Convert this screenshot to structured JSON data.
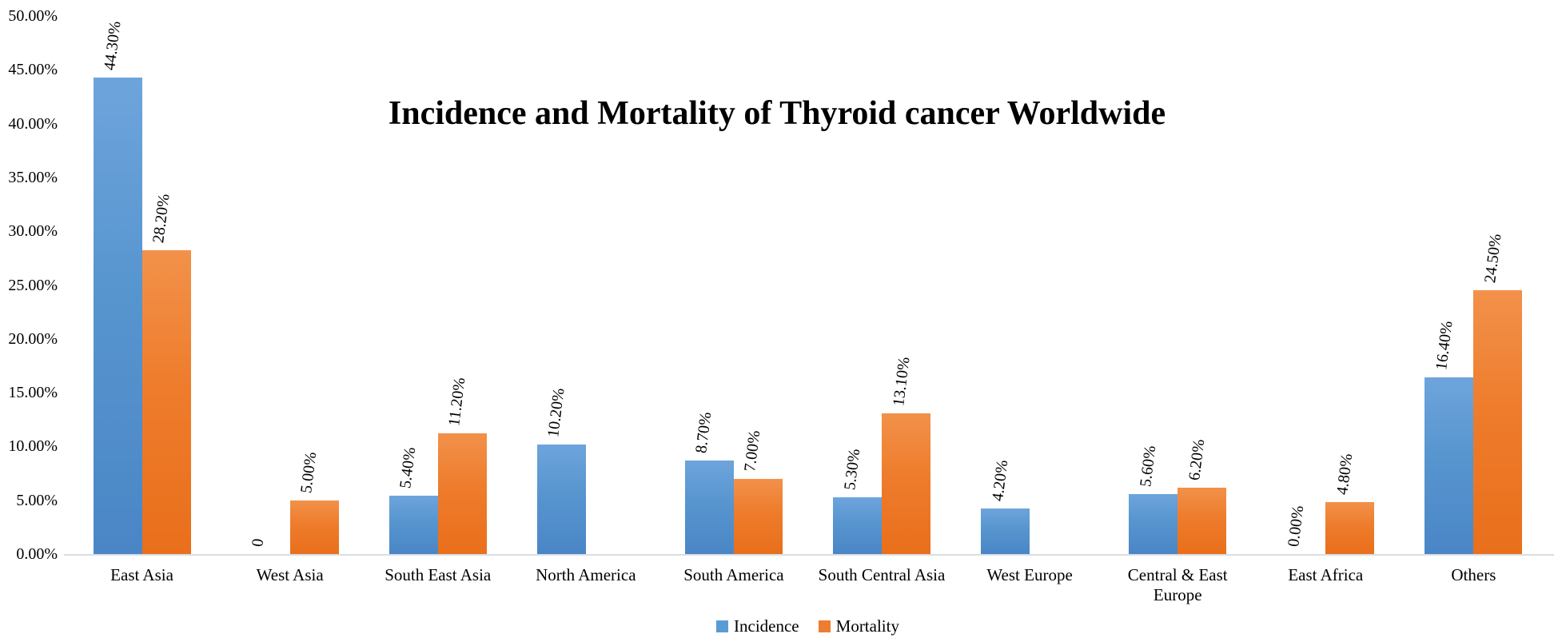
{
  "title": "Incidence and Mortality of Thyroid cancer Worldwide",
  "y_axis": {
    "ticks": [
      "50.00%",
      "45.00%",
      "40.00%",
      "35.00%",
      "30.00%",
      "25.00%",
      "20.00%",
      "15.00%",
      "10.00%",
      "5.00%",
      "0.00%"
    ]
  },
  "legend": [
    {
      "name": "Incidence",
      "color": "#5b9bd5"
    },
    {
      "name": "Mortality",
      "color": "#ed7d31"
    }
  ],
  "chart_data": {
    "type": "bar",
    "title": "Incidence and Mortality of Thyroid cancer Worldwide",
    "categories": [
      "East Asia",
      "West Asia",
      "South East Asia",
      "North America",
      "South America",
      "South Central Asia",
      "West Europe",
      "Central & East Europe",
      "East Africa",
      "Others"
    ],
    "series": [
      {
        "name": "Incidence",
        "color": "#5b9bd5",
        "values": [
          44.3,
          0,
          5.4,
          10.2,
          8.7,
          5.3,
          4.2,
          5.6,
          0,
          16.4
        ],
        "labels": [
          "44.30%",
          "0",
          "5.40%",
          "10.20%",
          "8.70%",
          "5.30%",
          "4.20%",
          "5.60%",
          "0.00%",
          "16.40%"
        ]
      },
      {
        "name": "Mortality",
        "color": "#ed7d31",
        "values": [
          28.2,
          5.0,
          11.2,
          null,
          7.0,
          13.1,
          null,
          6.2,
          4.8,
          24.5
        ],
        "labels": [
          "28.20%",
          "5.00%",
          "11.20%",
          null,
          "7.00%",
          "13.10%",
          null,
          "6.20%",
          "4.80%",
          "24.50%"
        ]
      }
    ],
    "ylabel": "",
    "xlabel": "",
    "ylim": [
      0,
      50
    ],
    "y_tick_step": 5,
    "grid": false,
    "data_labels_rotated": true,
    "legend_position": "bottom"
  }
}
